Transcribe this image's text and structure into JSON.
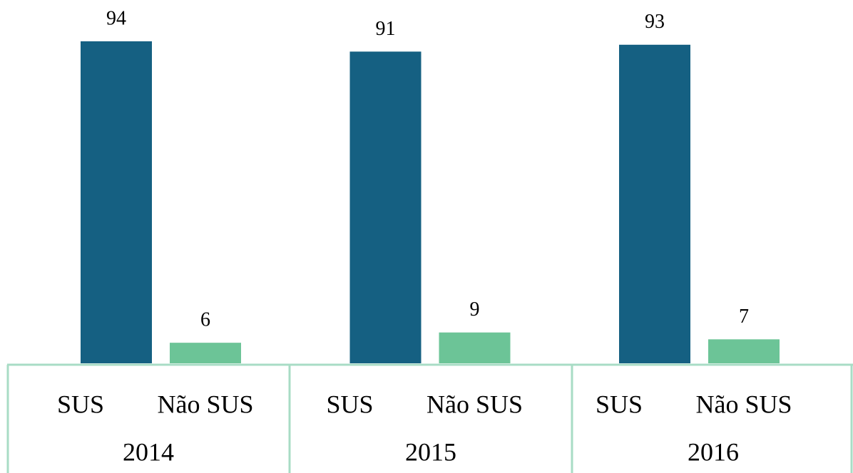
{
  "chart_data": {
    "type": "bar",
    "categories": [
      "2014",
      "2015",
      "2016"
    ],
    "series": [
      {
        "name": "SUS",
        "color": "#156082",
        "values": [
          94,
          91,
          93
        ]
      },
      {
        "name": "Não SUS",
        "color": "#6cc497",
        "values": [
          6,
          9,
          7
        ]
      }
    ]
  }
}
